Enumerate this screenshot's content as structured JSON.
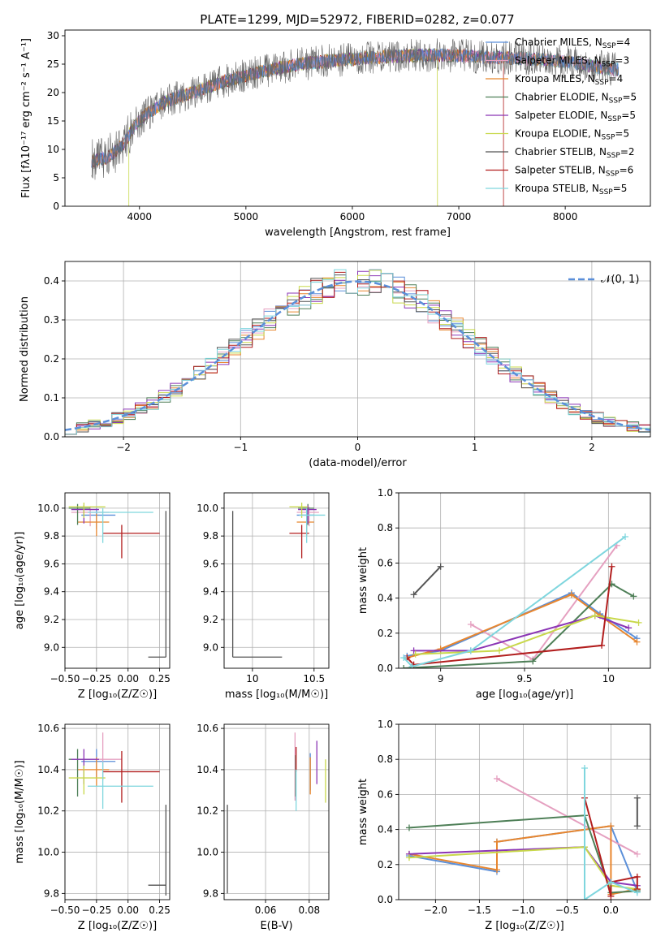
{
  "figure_title": "PLATE=1299, MJD=52972, FIBERID=0282, z=0.077",
  "colors": {
    "chabrier_miles": "#5b8fd9",
    "salpeter_miles": "#e5a0c0",
    "kroupa_miles": "#e8862e",
    "chabrier_elodie": "#4e7f57",
    "salpeter_elodie": "#8b35b5",
    "kroupa_elodie": "#c8d84a",
    "chabrier_stelib": "#555555",
    "salpeter_stelib": "#b21e1e",
    "kroupa_stelib": "#7fd6de",
    "normal": "#5b8fd9"
  },
  "chart_data": [
    {
      "id": "spectrum",
      "type": "line",
      "title": "PLATE=1299, MJD=52972, FIBERID=0282, z=0.077",
      "xlabel": "wavelength [Angstrom, rest frame]",
      "ylabel": "Flux [fλ10⁻¹⁷ erg cm⁻² s⁻¹ A⁻¹]",
      "xlim": [
        3300,
        8800
      ],
      "ylim": [
        0,
        31
      ],
      "xticks": [
        4000,
        5000,
        6000,
        7000,
        8000
      ],
      "yticks": [
        0,
        5,
        10,
        15,
        20,
        25,
        30
      ],
      "grid": false,
      "legend_position": "top-right",
      "legend": [
        {
          "label": "Chabrier MILES, N",
          "sub": "SSP",
          "value": "=4",
          "color": "#5b8fd9"
        },
        {
          "label": "Salpeter MILES, N",
          "sub": "SSP",
          "value": "=3",
          "color": "#e5a0c0"
        },
        {
          "label": "Kroupa MILES, N",
          "sub": "SSP",
          "value": "=4",
          "color": "#e8862e"
        },
        {
          "label": "Chabrier ELODIE, N",
          "sub": "SSP",
          "value": "=5",
          "color": "#4e7f57"
        },
        {
          "label": "Salpeter ELODIE, N",
          "sub": "SSP",
          "value": "=5",
          "color": "#8b35b5"
        },
        {
          "label": "Kroupa ELODIE, N",
          "sub": "SSP",
          "value": "=5",
          "color": "#c8d84a"
        },
        {
          "label": "Chabrier STELIB, N",
          "sub": "SSP",
          "value": "=2",
          "color": "#555555"
        },
        {
          "label": "Salpeter STELIB, N",
          "sub": "SSP",
          "value": "=6",
          "color": "#b21e1e"
        },
        {
          "label": "Kroupa STELIB, N",
          "sub": "SSP",
          "value": "=5",
          "color": "#7fd6de"
        }
      ],
      "continuum": [
        [
          3550,
          8
        ],
        [
          3700,
          8.5
        ],
        [
          3850,
          11
        ],
        [
          3950,
          14
        ],
        [
          4050,
          16
        ],
        [
          4250,
          18.5
        ],
        [
          4500,
          20
        ],
        [
          4800,
          22
        ],
        [
          5100,
          23.5
        ],
        [
          5500,
          25
        ],
        [
          5900,
          25.8
        ],
        [
          6300,
          26.3
        ],
        [
          6700,
          26.6
        ],
        [
          7000,
          26.5
        ],
        [
          7300,
          26.2
        ],
        [
          7600,
          26
        ],
        [
          8000,
          25.5
        ],
        [
          8300,
          24.5
        ],
        [
          8500,
          24
        ]
      ],
      "model_ranges": {
        "full": [
          3550,
          8500
        ],
        "kroupa_elodie_cut": [
          3900,
          6800
        ],
        "salpeter_stelib_cut": [
          3550,
          7420
        ]
      }
    },
    {
      "id": "residuals",
      "type": "line",
      "xlabel": "(data-model)/error",
      "ylabel": "Normed distribution",
      "xlim": [
        -2.5,
        2.5
      ],
      "ylim": [
        0,
        0.45
      ],
      "xticks": [
        -2,
        -1,
        0,
        1,
        2
      ],
      "xtick_labels": [
        "−2",
        "−1",
        "0",
        "1",
        "2"
      ],
      "yticks": [
        0.0,
        0.1,
        0.2,
        0.3,
        0.4
      ],
      "grid": true,
      "legend": [
        {
          "label": "𝒩(0, 1)",
          "style": "dashed",
          "color": "#5b8fd9"
        }
      ],
      "bin_width": 0.1
    },
    {
      "id": "age_vs_Z",
      "type": "scatter",
      "xlabel": "Z [log₁₀(Z/Z☉)]",
      "ylabel": "age  [log₁₀(age/yr)]",
      "xlim": [
        -0.5,
        0.33
      ],
      "ylim": [
        8.85,
        10.11
      ],
      "xticks": [
        -0.5,
        -0.25,
        0.0,
        0.25
      ],
      "xtick_labels": [
        "−0.50",
        "−0.25",
        "0.00",
        "0.25"
      ],
      "yticks": [
        9.0,
        9.2,
        9.4,
        9.6,
        9.8,
        10.0
      ],
      "grid": true,
      "points": [
        {
          "model": "chabrier_miles",
          "x": -0.25,
          "xerr": [
            0.12,
            0.15
          ],
          "y": 9.95,
          "yerr": [
            0.1,
            0.05
          ]
        },
        {
          "model": "salpeter_miles",
          "x": -0.3,
          "xerr": [
            0.15,
            0.15
          ],
          "y": 9.97,
          "yerr": [
            0.1,
            0.04
          ]
        },
        {
          "model": "kroupa_miles",
          "x": -0.25,
          "xerr": [
            0.15,
            0.1
          ],
          "y": 9.9,
          "yerr": [
            0.1,
            0.06
          ]
        },
        {
          "model": "chabrier_elodie",
          "x": -0.4,
          "xerr": [
            0.07,
            0.1
          ],
          "y": 10.0,
          "yerr": [
            0.12,
            0.03
          ]
        },
        {
          "model": "salpeter_elodie",
          "x": -0.35,
          "xerr": [
            0.1,
            0.12
          ],
          "y": 9.99,
          "yerr": [
            0.1,
            0.03
          ]
        },
        {
          "model": "kroupa_elodie",
          "x": -0.35,
          "xerr": [
            0.12,
            0.17
          ],
          "y": 10.01,
          "yerr": [
            0.08,
            0.03
          ]
        },
        {
          "model": "chabrier_stelib",
          "x": 0.3,
          "xerr": [
            0.14,
            0.0
          ],
          "y": 8.93,
          "yerr": [
            0.0,
            1.05
          ]
        },
        {
          "model": "salpeter_stelib",
          "x": -0.05,
          "xerr": [
            0.15,
            0.3
          ],
          "y": 9.82,
          "yerr": [
            0.18,
            0.06
          ]
        },
        {
          "model": "kroupa_stelib",
          "x": -0.2,
          "xerr": [
            0.12,
            0.4
          ],
          "y": 9.97,
          "yerr": [
            0.22,
            0.03
          ]
        }
      ]
    },
    {
      "id": "age_vs_mass",
      "type": "scatter",
      "xlabel": "mass [log₁₀(M/M☉)]",
      "xlim": [
        9.77,
        10.62
      ],
      "ylim": [
        8.85,
        10.11
      ],
      "xticks": [
        10.0,
        10.5
      ],
      "yticks": [
        9.0,
        9.2,
        9.4,
        9.6,
        9.8,
        10.0
      ],
      "grid": true,
      "points": [
        {
          "model": "chabrier_miles",
          "x": 10.44,
          "xerr": [
            0.08,
            0.06
          ],
          "y": 9.95,
          "yerr": [
            0.1,
            0.05
          ]
        },
        {
          "model": "salpeter_miles",
          "x": 10.46,
          "xerr": [
            0.1,
            0.08
          ],
          "y": 9.97,
          "yerr": [
            0.1,
            0.04
          ]
        },
        {
          "model": "kroupa_miles",
          "x": 10.44,
          "xerr": [
            0.08,
            0.06
          ],
          "y": 9.9,
          "yerr": [
            0.1,
            0.06
          ]
        },
        {
          "model": "chabrier_elodie",
          "x": 10.45,
          "xerr": [
            0.08,
            0.05
          ],
          "y": 10.0,
          "yerr": [
            0.12,
            0.03
          ]
        },
        {
          "model": "salpeter_elodie",
          "x": 10.45,
          "xerr": [
            0.08,
            0.07
          ],
          "y": 9.99,
          "yerr": [
            0.1,
            0.03
          ]
        },
        {
          "model": "kroupa_elodie",
          "x": 10.4,
          "xerr": [
            0.1,
            0.05
          ],
          "y": 10.01,
          "yerr": [
            0.08,
            0.03
          ]
        },
        {
          "model": "chabrier_stelib",
          "x": 9.84,
          "xerr": [
            0.0,
            0.4
          ],
          "y": 8.93,
          "yerr": [
            0.0,
            1.05
          ]
        },
        {
          "model": "salpeter_stelib",
          "x": 10.4,
          "xerr": [
            0.1,
            0.06
          ],
          "y": 9.82,
          "yerr": [
            0.18,
            0.06
          ]
        },
        {
          "model": "kroupa_stelib",
          "x": 10.44,
          "xerr": [
            0.06,
            0.15
          ],
          "y": 9.95,
          "yerr": [
            0.2,
            0.05
          ]
        }
      ]
    },
    {
      "id": "mass_weight_vs_age",
      "type": "line",
      "xlabel": "age  [log₁₀(age/yr)]",
      "ylabel": "mass weight",
      "xlim": [
        8.75,
        10.25
      ],
      "ylim": [
        0,
        1.0
      ],
      "xticks": [
        9.0,
        9.5,
        10.0
      ],
      "yticks": [
        0.0,
        0.2,
        0.4,
        0.6,
        0.8,
        1.0
      ],
      "grid": true,
      "series": [
        {
          "model": "chabrier_miles",
          "x": [
            8.8,
            9.0,
            9.78,
            9.95,
            10.17
          ],
          "y": [
            0.07,
            0.1,
            0.43,
            0.31,
            0.17
          ]
        },
        {
          "model": "salpeter_miles",
          "x": [
            9.18,
            9.55,
            10.05
          ],
          "y": [
            0.25,
            0.05,
            0.7
          ]
        },
        {
          "model": "kroupa_miles",
          "x": [
            8.8,
            9.0,
            9.78,
            9.95,
            10.17
          ],
          "y": [
            0.06,
            0.11,
            0.42,
            0.3,
            0.15
          ]
        },
        {
          "model": "chabrier_elodie",
          "x": [
            8.78,
            9.55,
            10.02,
            10.15
          ],
          "y": [
            0.0,
            0.04,
            0.48,
            0.41
          ]
        },
        {
          "model": "salpeter_elodie",
          "x": [
            8.84,
            9.18,
            9.92,
            10.12
          ],
          "y": [
            0.1,
            0.1,
            0.3,
            0.23
          ]
        },
        {
          "model": "kroupa_elodie",
          "x": [
            8.85,
            9.35,
            9.92,
            10.18
          ],
          "y": [
            0.08,
            0.1,
            0.3,
            0.26
          ]
        },
        {
          "model": "chabrier_stelib",
          "x": [
            8.84,
            9.0
          ],
          "y": [
            0.42,
            0.58
          ]
        },
        {
          "model": "salpeter_stelib",
          "x": [
            8.8,
            8.84,
            9.96,
            10.02
          ],
          "y": [
            0.06,
            0.02,
            0.13,
            0.58
          ]
        },
        {
          "model": "kroupa_stelib",
          "x": [
            8.78,
            8.83,
            9.18,
            10.1
          ],
          "y": [
            0.06,
            0.01,
            0.1,
            0.75
          ]
        }
      ]
    },
    {
      "id": "mass_vs_Z",
      "type": "scatter",
      "xlabel": "Z [log₁₀(Z/Z☉)]",
      "ylabel": "mass [log₁₀(M/M☉)]",
      "xlim": [
        -0.5,
        0.33
      ],
      "ylim": [
        9.77,
        10.62
      ],
      "xticks": [
        -0.5,
        -0.25,
        0.0,
        0.25
      ],
      "xtick_labels": [
        "−0.50",
        "−0.25",
        "0.00",
        "0.25"
      ],
      "yticks": [
        9.8,
        10.0,
        10.2,
        10.4,
        10.6
      ],
      "grid": true,
      "points": [
        {
          "model": "chabrier_miles",
          "x": -0.25,
          "xerr": [
            0.12,
            0.15
          ],
          "y": 10.44,
          "yerr": [
            0.08,
            0.06
          ]
        },
        {
          "model": "salpeter_miles",
          "x": -0.2,
          "xerr": [
            0.1,
            0.15
          ],
          "y": 10.45,
          "yerr": [
            0.1,
            0.13
          ]
        },
        {
          "model": "kroupa_miles",
          "x": -0.25,
          "xerr": [
            0.15,
            0.1
          ],
          "y": 10.4,
          "yerr": [
            0.08,
            0.06
          ]
        },
        {
          "model": "chabrier_elodie",
          "x": -0.4,
          "xerr": [
            0.07,
            0.1
          ],
          "y": 10.45,
          "yerr": [
            0.18,
            0.05
          ]
        },
        {
          "model": "salpeter_elodie",
          "x": -0.35,
          "xerr": [
            0.1,
            0.12
          ],
          "y": 10.45,
          "yerr": [
            0.12,
            0.05
          ]
        },
        {
          "model": "kroupa_elodie",
          "x": -0.35,
          "xerr": [
            0.12,
            0.17
          ],
          "y": 10.36,
          "yerr": [
            0.08,
            0.06
          ]
        },
        {
          "model": "chabrier_stelib",
          "x": 0.3,
          "xerr": [
            0.14,
            0.0
          ],
          "y": 9.84,
          "yerr": [
            0.05,
            0.39
          ]
        },
        {
          "model": "salpeter_stelib",
          "x": -0.05,
          "xerr": [
            0.15,
            0.3
          ],
          "y": 10.39,
          "yerr": [
            0.15,
            0.1
          ]
        },
        {
          "model": "kroupa_stelib",
          "x": -0.2,
          "xerr": [
            0.12,
            0.4
          ],
          "y": 10.32,
          "yerr": [
            0.11,
            0.12
          ]
        }
      ]
    },
    {
      "id": "mass_vs_ebv",
      "type": "scatter",
      "xlabel": "E(B-V)",
      "xlim": [
        0.041,
        0.089
      ],
      "ylim": [
        9.77,
        10.62
      ],
      "xticks": [
        0.06,
        0.08
      ],
      "yticks": [
        9.8,
        10.0,
        10.2,
        10.4,
        10.6
      ],
      "grid": true,
      "points": [
        {
          "model": "chabrier_miles",
          "x": 0.0805,
          "y": 10.4,
          "yerr": [
            0.1,
            0.08
          ]
        },
        {
          "model": "salpeter_miles",
          "x": 0.0735,
          "y": 10.45,
          "yerr": [
            0.2,
            0.13
          ]
        },
        {
          "model": "kroupa_miles",
          "x": 0.0805,
          "y": 10.38,
          "yerr": [
            0.1,
            0.08
          ]
        },
        {
          "model": "chabrier_elodie",
          "x": 0.0738,
          "y": 10.42,
          "yerr": [
            0.15,
            0.05
          ]
        },
        {
          "model": "salpeter_elodie",
          "x": 0.0835,
          "y": 10.45,
          "yerr": [
            0.12,
            0.09
          ]
        },
        {
          "model": "kroupa_elodie",
          "x": 0.0875,
          "y": 10.36,
          "yerr": [
            0.12,
            0.09
          ]
        },
        {
          "model": "chabrier_stelib",
          "x": 0.0425,
          "y": 10.0,
          "yerr": [
            0.2,
            0.23
          ]
        },
        {
          "model": "salpeter_stelib",
          "x": 0.074,
          "y": 10.46,
          "yerr": [
            0.07,
            0.05
          ]
        },
        {
          "model": "kroupa_stelib",
          "x": 0.074,
          "y": 10.3,
          "yerr": [
            0.1,
            0.1
          ]
        }
      ]
    },
    {
      "id": "mass_weight_vs_Z",
      "type": "line",
      "xlabel": "Z [log₁₀(Z/Z☉)]",
      "ylabel": "mass weight",
      "xlim": [
        -2.42,
        0.45
      ],
      "ylim": [
        0,
        1.0
      ],
      "xticks": [
        -2.0,
        -1.5,
        -1.0,
        -0.5,
        0.0
      ],
      "xtick_labels": [
        "−2.0",
        "−1.5",
        "−1.0",
        "−0.5",
        "0.0"
      ],
      "yticks": [
        0.0,
        0.2,
        0.4,
        0.6,
        0.8,
        1.0
      ],
      "grid": true,
      "series": [
        {
          "model": "chabrier_miles",
          "x": [
            -2.3,
            -1.3,
            -1.3,
            0.0,
            0.3
          ],
          "y": [
            0.25,
            0.16,
            0.33,
            0.42,
            0.05
          ]
        },
        {
          "model": "salpeter_miles",
          "x": [
            -1.3,
            0.3
          ],
          "y": [
            0.69,
            0.26
          ]
        },
        {
          "model": "kroupa_miles",
          "x": [
            -2.3,
            -1.3,
            -1.3,
            0.0,
            0.0,
            0.3
          ],
          "y": [
            0.26,
            0.17,
            0.33,
            0.42,
            0.03,
            0.06
          ]
        },
        {
          "model": "chabrier_elodie",
          "x": [
            -2.3,
            -0.3,
            0.0,
            0.3
          ],
          "y": [
            0.41,
            0.48,
            0.04,
            0.05
          ]
        },
        {
          "model": "salpeter_elodie",
          "x": [
            -2.3,
            -0.3,
            0.0,
            0.3
          ],
          "y": [
            0.26,
            0.3,
            0.1,
            0.08
          ]
        },
        {
          "model": "kroupa_elodie",
          "x": [
            -2.3,
            -0.3,
            0.0,
            0.3
          ],
          "y": [
            0.24,
            0.3,
            0.08,
            0.06
          ]
        },
        {
          "model": "chabrier_stelib",
          "x": [
            0.3,
            0.3
          ],
          "y": [
            0.42,
            0.58
          ]
        },
        {
          "model": "salpeter_stelib",
          "x": [
            -0.3,
            0.0,
            0.0,
            0.3,
            0.3
          ],
          "y": [
            0.58,
            0.02,
            0.1,
            0.13,
            0.06
          ]
        },
        {
          "model": "kroupa_stelib",
          "x": [
            -0.3,
            -0.3,
            0.0,
            0.3
          ],
          "y": [
            0.75,
            0.0,
            0.1,
            0.04
          ]
        }
      ]
    }
  ]
}
